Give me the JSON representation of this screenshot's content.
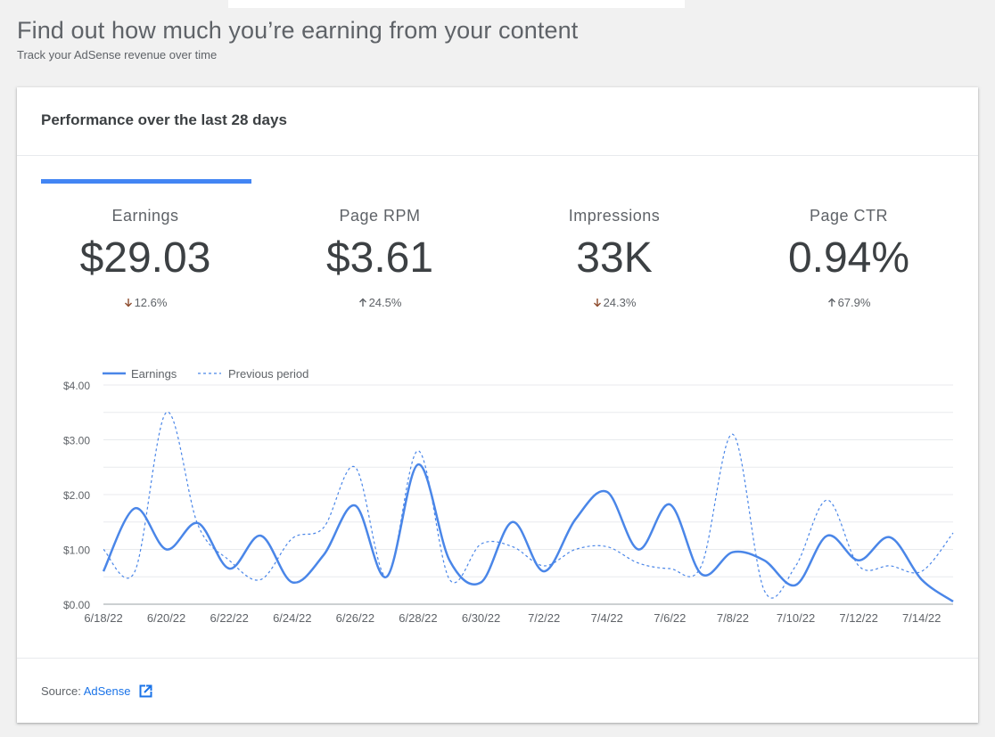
{
  "page": {
    "title": "Find out how much you’re earning from your content",
    "subtitle": "Track your AdSense revenue over time"
  },
  "card": {
    "title": "Performance over the last 28 days"
  },
  "metrics": [
    {
      "label": "Earnings",
      "value": "$29.03",
      "change": "12.6%",
      "direction": "down"
    },
    {
      "label": "Page RPM",
      "value": "$3.61",
      "change": "24.5%",
      "direction": "up"
    },
    {
      "label": "Impressions",
      "value": "33K",
      "change": "24.3%",
      "direction": "down"
    },
    {
      "label": "Page CTR",
      "value": "0.94%",
      "change": "67.9%",
      "direction": "up"
    }
  ],
  "colors": {
    "accent": "#4285f4",
    "down_arrow": "#8d4b2c",
    "up_arrow": "#5f6368",
    "link": "#1a73e8"
  },
  "chart_data": {
    "type": "line",
    "x": [
      "6/18/22",
      "6/19/22",
      "6/20/22",
      "6/21/22",
      "6/22/22",
      "6/23/22",
      "6/24/22",
      "6/25/22",
      "6/26/22",
      "6/27/22",
      "6/28/22",
      "6/29/22",
      "6/30/22",
      "7/1/22",
      "7/2/22",
      "7/3/22",
      "7/4/22",
      "7/5/22",
      "7/6/22",
      "7/7/22",
      "7/8/22",
      "7/9/22",
      "7/10/22",
      "7/11/22",
      "7/12/22",
      "7/13/22",
      "7/14/22",
      "7/15/22"
    ],
    "x_tick_labels": [
      "6/18/22",
      "6/20/22",
      "6/22/22",
      "6/24/22",
      "6/26/22",
      "6/28/22",
      "6/30/22",
      "7/2/22",
      "7/4/22",
      "7/6/22",
      "7/8/22",
      "7/10/22",
      "7/12/22",
      "7/14/22"
    ],
    "series": [
      {
        "name": "Earnings",
        "style": "solid",
        "color": "#4a86e8",
        "values": [
          0.6,
          1.75,
          1.0,
          1.48,
          0.65,
          1.25,
          0.4,
          0.9,
          1.8,
          0.5,
          2.55,
          0.8,
          0.4,
          1.5,
          0.6,
          1.55,
          2.05,
          1.0,
          1.82,
          0.55,
          0.95,
          0.8,
          0.35,
          1.25,
          0.8,
          1.22,
          0.45,
          0.05
        ]
      },
      {
        "name": "Previous period",
        "style": "dashed",
        "color": "#4a86e8",
        "values": [
          1.0,
          0.6,
          3.5,
          1.45,
          0.8,
          0.45,
          1.2,
          1.4,
          2.5,
          0.5,
          2.8,
          0.45,
          1.1,
          1.05,
          0.7,
          1.0,
          1.05,
          0.75,
          0.65,
          0.7,
          3.1,
          0.25,
          0.7,
          1.9,
          0.7,
          0.7,
          0.6,
          1.3
        ]
      }
    ],
    "y_tick_labels": [
      "$0.00",
      "$1.00",
      "$2.00",
      "$3.00",
      "$4.00"
    ],
    "ylim": [
      0,
      4
    ],
    "grid": true,
    "legend": "top-left"
  },
  "footer": {
    "source_label": "Source:",
    "source_link": "AdSense",
    "external_icon": "open-in-new-icon"
  }
}
